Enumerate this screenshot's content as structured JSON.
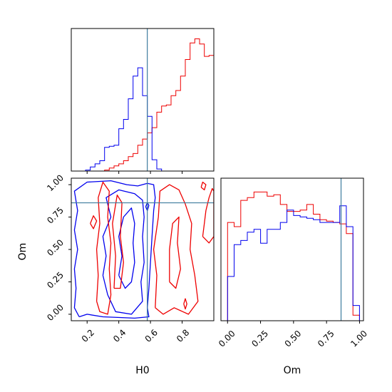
{
  "chart_data": {
    "type": "corner",
    "parameters": [
      "H0",
      "Om"
    ],
    "truths": {
      "H0": 0.58,
      "Om": 0.86
    },
    "truth_color": "#3e7c9e",
    "series_colors": [
      "#0000ee",
      "#ee0000"
    ],
    "h0_hist": {
      "xlim": [
        0.1,
        1.0
      ],
      "bin_edges": [
        0.1,
        0.13,
        0.16,
        0.19,
        0.22,
        0.25,
        0.28,
        0.31,
        0.34,
        0.37,
        0.4,
        0.43,
        0.46,
        0.49,
        0.52,
        0.55,
        0.58,
        0.61,
        0.64,
        0.67,
        0.7,
        0.73,
        0.76,
        0.79,
        0.82,
        0.85,
        0.88,
        0.91,
        0.94,
        0.97,
        1.0
      ],
      "blue": [
        0,
        0,
        0,
        0.01,
        0.04,
        0.07,
        0.1,
        0.23,
        0.24,
        0.25,
        0.41,
        0.5,
        0.7,
        0.92,
        1.0,
        0.73,
        0.53,
        0.11,
        0.02,
        0,
        0,
        0,
        0,
        0,
        0,
        0,
        0,
        0,
        0,
        0
      ],
      "red": [
        0,
        0,
        0,
        0,
        0,
        0,
        0,
        0.01,
        0.03,
        0.05,
        0.07,
        0.1,
        0.14,
        0.17,
        0.25,
        0.31,
        0.37,
        0.42,
        0.57,
        0.63,
        0.64,
        0.73,
        0.78,
        0.92,
        1.08,
        1.24,
        1.28,
        1.23,
        1.11,
        1.12
      ]
    },
    "om_hist": {
      "xlim": [
        -0.05,
        1.03
      ],
      "bin_edges": [
        0.0,
        0.05,
        0.1,
        0.15,
        0.2,
        0.25,
        0.3,
        0.35,
        0.4,
        0.45,
        0.5,
        0.55,
        0.6,
        0.65,
        0.7,
        0.75,
        0.8,
        0.85,
        0.9,
        0.95,
        1.0
      ],
      "blue": [
        0.32,
        0.55,
        0.58,
        0.64,
        0.66,
        0.56,
        0.66,
        0.66,
        0.71,
        0.8,
        0.76,
        0.75,
        0.74,
        0.73,
        0.71,
        0.71,
        0.71,
        0.83,
        0.68,
        0.11
      ],
      "red": [
        0.71,
        0.68,
        0.87,
        0.89,
        0.93,
        0.93,
        0.9,
        0.91,
        0.84,
        0.79,
        0.79,
        0.8,
        0.84,
        0.77,
        0.73,
        0.72,
        0.71,
        0.7,
        0.63,
        0.04
      ]
    },
    "xticks_h0": [
      0.2,
      0.4,
      0.6,
      0.8
    ],
    "xtick_labels_h0": [
      "0.2",
      "0.4",
      "0.6",
      "0.8"
    ],
    "yticks_om": [
      0.0,
      0.25,
      0.5,
      0.75,
      1.0
    ],
    "ytick_labels_om": [
      "0.00",
      "0.25",
      "0.50",
      "0.75",
      "1.00"
    ],
    "xticks_om": [
      0.0,
      0.25,
      0.5,
      0.75,
      1.0
    ],
    "xtick_labels_om": [
      "0.00",
      "0.25",
      "0.50",
      "0.75",
      "1.00"
    ],
    "xlabel_h0": "H0",
    "xlabel_om": "Om",
    "ylabel_om": "Om",
    "scatter_xlim": [
      0.1,
      1.0
    ],
    "scatter_ylim": [
      -0.05,
      1.05
    ],
    "contours": [
      {
        "color": "blue",
        "points": [
          [
            0.15,
            -0.02
          ],
          [
            0.12,
            0.05
          ],
          [
            0.13,
            0.2
          ],
          [
            0.12,
            0.35
          ],
          [
            0.14,
            0.5
          ],
          [
            0.12,
            0.65
          ],
          [
            0.14,
            0.8
          ],
          [
            0.12,
            0.95
          ],
          [
            0.2,
            1.02
          ],
          [
            0.35,
            1.03
          ],
          [
            0.45,
            1.0
          ],
          [
            0.52,
            0.99
          ],
          [
            0.58,
            1.01
          ],
          [
            0.62,
            1.0
          ],
          [
            0.63,
            0.9
          ],
          [
            0.62,
            0.8
          ],
          [
            0.61,
            0.6
          ],
          [
            0.6,
            0.4
          ],
          [
            0.59,
            0.2
          ],
          [
            0.58,
            0.05
          ],
          [
            0.59,
            -0.02
          ],
          [
            0.5,
            -0.03
          ],
          [
            0.3,
            -0.02
          ],
          [
            0.2,
            0.0
          ],
          [
            0.15,
            -0.02
          ]
        ]
      },
      {
        "color": "blue",
        "points": [
          [
            0.3,
            0.3
          ],
          [
            0.32,
            0.45
          ],
          [
            0.3,
            0.6
          ],
          [
            0.35,
            0.75
          ],
          [
            0.32,
            0.9
          ],
          [
            0.4,
            0.96
          ],
          [
            0.5,
            0.93
          ],
          [
            0.55,
            0.88
          ],
          [
            0.56,
            0.75
          ],
          [
            0.55,
            0.6
          ],
          [
            0.56,
            0.4
          ],
          [
            0.54,
            0.25
          ],
          [
            0.55,
            0.1
          ],
          [
            0.48,
            0.0
          ],
          [
            0.38,
            0.02
          ],
          [
            0.33,
            0.15
          ],
          [
            0.3,
            0.3
          ]
        ]
      },
      {
        "color": "blue",
        "points": [
          [
            0.4,
            0.3
          ],
          [
            0.42,
            0.45
          ],
          [
            0.4,
            0.6
          ],
          [
            0.43,
            0.75
          ],
          [
            0.48,
            0.82
          ],
          [
            0.5,
            0.7
          ],
          [
            0.49,
            0.55
          ],
          [
            0.5,
            0.4
          ],
          [
            0.48,
            0.25
          ],
          [
            0.44,
            0.2
          ],
          [
            0.4,
            0.3
          ]
        ]
      },
      {
        "color": "blue",
        "points": [
          [
            0.57,
            0.83
          ],
          [
            0.58,
            0.86
          ],
          [
            0.59,
            0.84
          ],
          [
            0.58,
            0.8
          ],
          [
            0.57,
            0.83
          ]
        ]
      },
      {
        "color": "red",
        "points": [
          [
            0.22,
            0.7
          ],
          [
            0.24,
            0.76
          ],
          [
            0.26,
            0.72
          ],
          [
            0.24,
            0.66
          ],
          [
            0.22,
            0.7
          ]
        ]
      },
      {
        "color": "red",
        "points": [
          [
            0.26,
            0.1
          ],
          [
            0.27,
            0.3
          ],
          [
            0.26,
            0.5
          ],
          [
            0.28,
            0.7
          ],
          [
            0.27,
            0.9
          ],
          [
            0.3,
            1.02
          ],
          [
            0.34,
            0.95
          ],
          [
            0.33,
            0.75
          ],
          [
            0.35,
            0.55
          ],
          [
            0.34,
            0.35
          ],
          [
            0.35,
            0.15
          ],
          [
            0.33,
            0.0
          ],
          [
            0.28,
            0.02
          ],
          [
            0.26,
            0.1
          ]
        ]
      },
      {
        "color": "red",
        "points": [
          [
            0.37,
            0.2
          ],
          [
            0.38,
            0.45
          ],
          [
            0.36,
            0.7
          ],
          [
            0.39,
            0.92
          ],
          [
            0.42,
            0.86
          ],
          [
            0.41,
            0.6
          ],
          [
            0.43,
            0.4
          ],
          [
            0.41,
            0.2
          ],
          [
            0.37,
            0.2
          ]
        ]
      },
      {
        "color": "red",
        "points": [
          [
            0.63,
            0.05
          ],
          [
            0.64,
            0.3
          ],
          [
            0.62,
            0.5
          ],
          [
            0.65,
            0.75
          ],
          [
            0.66,
            0.95
          ],
          [
            0.72,
            1.0
          ],
          [
            0.78,
            0.96
          ],
          [
            0.82,
            0.85
          ],
          [
            0.86,
            0.7
          ],
          [
            0.85,
            0.5
          ],
          [
            0.88,
            0.3
          ],
          [
            0.9,
            0.1
          ],
          [
            0.84,
            0.0
          ],
          [
            0.75,
            0.05
          ],
          [
            0.68,
            0.0
          ],
          [
            0.63,
            0.05
          ]
        ]
      },
      {
        "color": "red",
        "points": [
          [
            0.72,
            0.25
          ],
          [
            0.72,
            0.5
          ],
          [
            0.74,
            0.7
          ],
          [
            0.78,
            0.75
          ],
          [
            0.77,
            0.55
          ],
          [
            0.79,
            0.35
          ],
          [
            0.76,
            0.2
          ],
          [
            0.72,
            0.25
          ]
        ]
      },
      {
        "color": "red",
        "points": [
          [
            0.81,
            0.08
          ],
          [
            0.82,
            0.12
          ],
          [
            0.83,
            0.08
          ],
          [
            0.82,
            0.04
          ],
          [
            0.81,
            0.08
          ]
        ]
      },
      {
        "color": "red",
        "points": [
          [
            0.93,
            0.6
          ],
          [
            0.94,
            0.7
          ],
          [
            0.95,
            0.8
          ],
          [
            0.97,
            0.9
          ],
          [
            0.99,
            0.97
          ],
          [
            1.0,
            0.95
          ],
          [
            1.0,
            0.6
          ],
          [
            0.97,
            0.55
          ],
          [
            0.93,
            0.6
          ]
        ]
      },
      {
        "color": "red",
        "points": [
          [
            0.92,
            0.98
          ],
          [
            0.93,
            1.02
          ],
          [
            0.95,
            1.0
          ],
          [
            0.94,
            0.96
          ],
          [
            0.92,
            0.98
          ]
        ]
      }
    ]
  }
}
